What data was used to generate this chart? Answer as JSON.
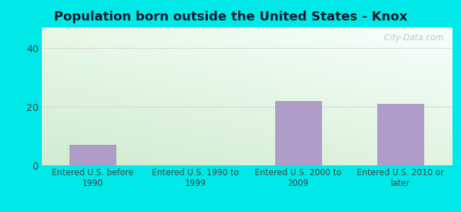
{
  "title": "Population born outside the United States - Knox",
  "categories": [
    "Entered U.S. before\n1990",
    "Entered U.S. 1990 to\n1999",
    "Entered U.S. 2000 to\n2009",
    "Entered U.S. 2010 or\nlater"
  ],
  "values": [
    7,
    0,
    22,
    21
  ],
  "bar_color": "#b09cc8",
  "bar_edge_color": "#9988bb",
  "background_outer": "#00e8e8",
  "background_inner_topleft": "#d4f0d4",
  "background_inner_topright": "#f8ffff",
  "background_inner_bottom": "#d4f0d4",
  "yticks": [
    0,
    20,
    40
  ],
  "ylim": [
    0,
    47
  ],
  "grid_color": "#d8d8d8",
  "tick_color": "#444444",
  "title_fontsize": 13,
  "label_fontsize": 8.5,
  "watermark_text": "  City-Data.com",
  "watermark_color": "#b0bfc8"
}
